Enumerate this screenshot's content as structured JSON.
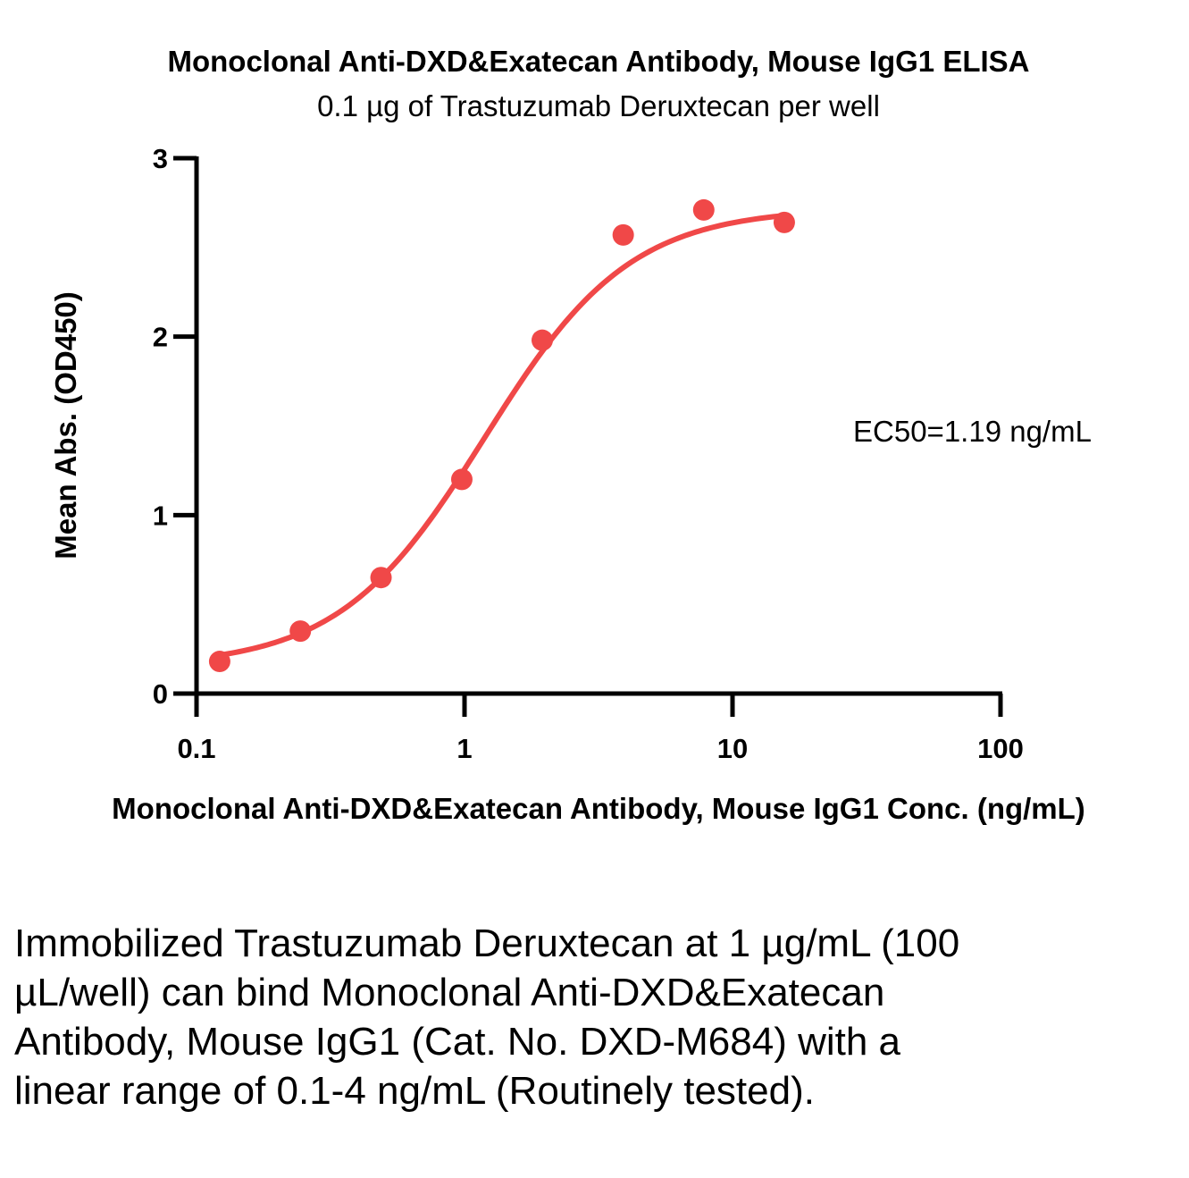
{
  "chart_data": {
    "type": "scatter",
    "title": "Monoclonal Anti-DXD&Exatecan Antibody, Mouse IgG1 ELISA",
    "subtitle": "0.1 µg of Trastuzumab Deruxtecan per well",
    "xlabel": "Monoclonal Anti-DXD&Exatecan Antibody, Mouse IgG1 Conc. (ng/mL)",
    "ylabel": "Mean Abs. (OD450)",
    "x_scale": "log",
    "xlim": [
      0.1,
      100
    ],
    "ylim": [
      0,
      3
    ],
    "x_ticks": [
      "0.1",
      "1",
      "10",
      "100"
    ],
    "y_ticks": [
      "0",
      "1",
      "2",
      "3"
    ],
    "grid": false,
    "color": "#f04848",
    "series": [
      {
        "x": [
          0.122,
          0.244,
          0.488,
          0.977,
          1.95,
          3.91,
          7.81,
          15.6
        ],
        "y": [
          0.18,
          0.35,
          0.65,
          1.2,
          1.98,
          2.57,
          2.71,
          2.64
        ]
      }
    ],
    "fit": {
      "type": "4PL",
      "bottom": 0.15,
      "top": 2.72,
      "ec50": 1.19,
      "hill": 1.6,
      "x_range": [
        0.12,
        15.6
      ]
    },
    "annotation": "EC50=1.19 ng/mL"
  },
  "caption": "Immobilized Trastuzumab Deruxtecan at 1 µg/mL (100 µL/well) can bind Monoclonal Anti-DXD&Exatecan Antibody, Mouse IgG1 (Cat. No. DXD-M684) with a linear range of 0.1-4 ng/mL (Routinely tested)."
}
